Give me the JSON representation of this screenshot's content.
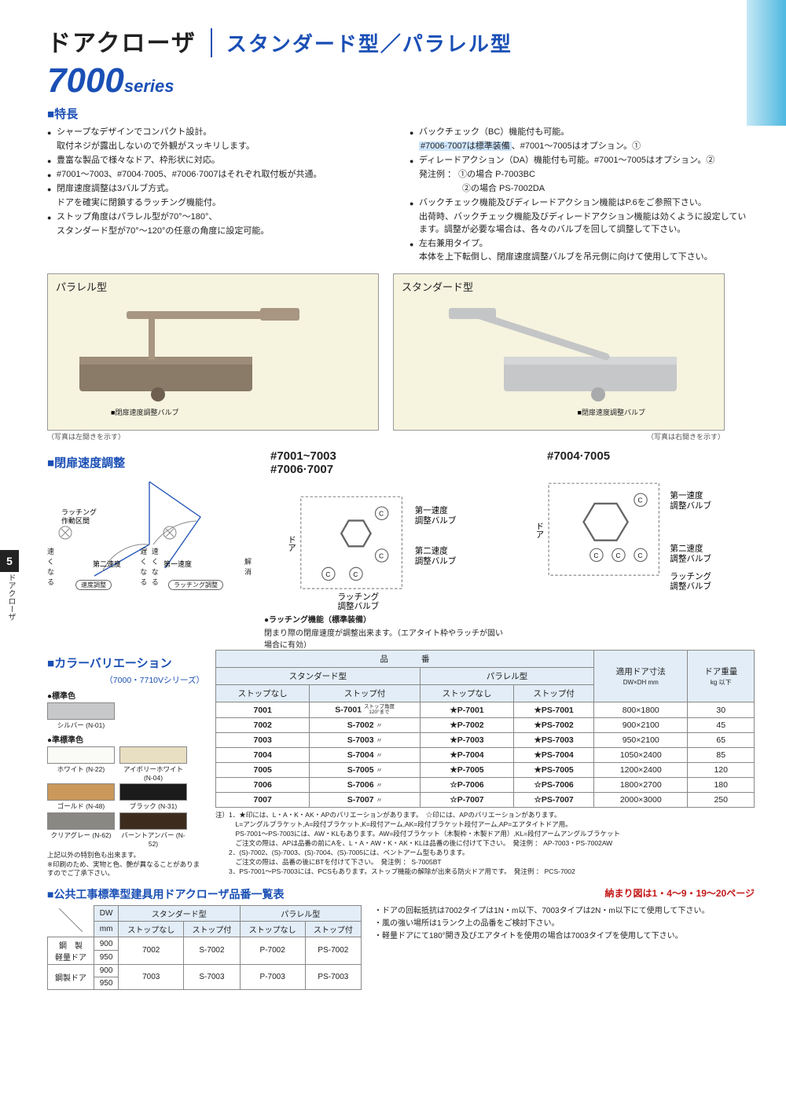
{
  "page_number": "5",
  "side_label": "ドアクローザ",
  "header": {
    "title": "ドアクローザ",
    "subtitle": "スタンダード型／パラレル型"
  },
  "series": {
    "num": "7000",
    "suffix": "series"
  },
  "feature_heading": "特長",
  "features_left": [
    {
      "t": "シャープなデザインでコンパクト設計。",
      "b": true
    },
    {
      "t": "取付ネジが露出しないので外観がスッキリします。",
      "b": false
    },
    {
      "t": "豊富な製品で様々なドア、枠形状に対応。",
      "b": true
    },
    {
      "t": "#7001〜7003、#7004·7005、#7006·7007はそれぞれ取付板が共通。",
      "b": true
    },
    {
      "t": "閉扉速度調整は3バルブ方式。",
      "b": true
    },
    {
      "t": "ドアを確実に閉鎖するラッチング機能付。",
      "b": false
    },
    {
      "t": "ストップ角度はパラレル型が70°〜180°、",
      "b": true
    },
    {
      "t": "スタンダード型が70°〜120°の任意の角度に設定可能。",
      "b": false
    }
  ],
  "features_right": [
    {
      "t": "バックチェック（BC）機能付も可能。",
      "b": true
    },
    {
      "t": "#7006·7007は標準装備、#7001〜7005はオプション。①",
      "b": false,
      "hl": "#7006·7007は標準装備"
    },
    {
      "t": "ディレードアクション（DA）機能付も可能。#7001〜7005はオプション。②",
      "b": true
    },
    {
      "t": "発注例 ： ①の場合 P-7003BC",
      "b": false
    },
    {
      "t": "　　　　　②の場合 PS-7002DA",
      "b": false
    },
    {
      "t": "バックチェック機能及びディレードアクション機能はP.6をご参照下さい。",
      "b": true
    },
    {
      "t": "出荷時、バックチェック機能及びディレードアクション機能は効くように設定しています。調整が必要な場合は、各々のバルブを回して調整して下さい。",
      "b": false
    },
    {
      "t": "左右兼用タイプ。",
      "b": true
    },
    {
      "t": "本体を上下転倒し、閉扉速度調整バルブを吊元側に向けて使用して下さい。",
      "b": false
    }
  ],
  "images": {
    "left_label": "パラレル型",
    "right_label": "スタンダード型",
    "valve_label": "閉扉速度調整バルブ",
    "left_caption": "（写真は左開きを示す）",
    "right_caption": "（写真は右開きを示す）"
  },
  "adj_heading": "閉扉速度調整",
  "adj_labels": {
    "latching_zone": "ラッチング\n作動区間",
    "speed2": "第二速度",
    "speed1": "第一速度",
    "speed_adj": "速度調整",
    "latch_adj": "ラッチング調整",
    "faster": "速くなる",
    "slower": "遅くなる",
    "release": "解消"
  },
  "diag1_title": "#7001~7003\n#7006·7007",
  "diag2_title": "#7004·7005",
  "valve_labels": {
    "v1": "第一速度\n調整バルブ",
    "v2": "第二速度\n調整バルブ",
    "v3": "ラッチング\n調整バルブ",
    "door": "ドア"
  },
  "latch_note_h": "●ラッチング機能（標準装備）",
  "latch_note_b": "閉まり際の閉扉速度が調整出来ます。（エアタイト枠やラッチが固い場合に有効）",
  "color_heading": "カラーバリエーション",
  "color_sub": "（7000・7710Vシリーズ）",
  "color_groups": [
    {
      "h": "●標準色",
      "rows": [
        [
          {
            "c": "#c7c8c9",
            "n": "シルバー (N-01)"
          }
        ]
      ]
    },
    {
      "h": "●準標準色",
      "rows": [
        [
          {
            "c": "#fafaf6",
            "n": "ホワイト (N-22)"
          },
          {
            "c": "#e8dec2",
            "n": "アイボリーホワイト (N-04)"
          }
        ],
        [
          {
            "c": "#c9985a",
            "n": "ゴールド (N-48)"
          },
          {
            "c": "#1b1b1b",
            "n": "ブラック (N-31)"
          }
        ],
        [
          {
            "c": "#8a8882",
            "n": "クリアグレー (N-62)"
          },
          {
            "c": "#3d2c1e",
            "n": "バーントアンバー (N-52)"
          }
        ]
      ]
    }
  ],
  "color_note": "上記以外の特別色も出来ます。\n※印刷のため、実物と色、艶が異なることがありますのでご了承下さい。",
  "table": {
    "head1": "品　　　　番",
    "cols": [
      "スタンダード型",
      "パラレル型"
    ],
    "sub": [
      "ストップなし",
      "ストップ付",
      "ストップなし",
      "ストップ付"
    ],
    "size_h": "適用ドア寸法",
    "size_h2": "DW×DH mm",
    "wt_h": "ドア重量",
    "wt_h2": "kg 以下",
    "stop_note": "ストップ角度\n120°まで",
    "rows": [
      [
        "7001",
        "S-7001",
        "★P-7001",
        "★PS-7001",
        "800×1800",
        "30"
      ],
      [
        "7002",
        "S-7002",
        "★P-7002",
        "★PS-7002",
        "900×2100",
        "45"
      ],
      [
        "7003",
        "S-7003",
        "★P-7003",
        "★PS-7003",
        "950×2100",
        "65"
      ],
      [
        "7004",
        "S-7004",
        "★P-7004",
        "★PS-7004",
        "1050×2400",
        "85"
      ],
      [
        "7005",
        "S-7005",
        "★P-7005",
        "★PS-7005",
        "1200×2400",
        "120"
      ],
      [
        "7006",
        "S-7006",
        "☆P-7006",
        "☆PS-7006",
        "1800×2700",
        "180"
      ],
      [
        "7007",
        "S-7007",
        "☆P-7007",
        "☆PS-7007",
        "2000×3000",
        "250"
      ]
    ]
  },
  "footnotes": [
    "注）1．★印には、L・A・K・AK・APのバリエーションがあります。　☆印には、APのバリエーションがあります。",
    "　　　L=アングルブラケット,A=段付ブラケット,K=段付アーム,AK=段付ブラケット段付アーム,AP=エアタイトドア用。",
    "　　　PS-7001〜PS-7003には、AW・KLもあります。AW=段付ブラケット（木製枠・木製ドア用）,KL=段付アームアングルブラケット",
    "　　　ご注文の際は、APは品番の前にAを、L・A・AW・K・AK・KLは品番の後に付けて下さい。　発注例 ： AP-7003・PS-7002AW",
    "　　2．(S)-7002、(S)-7003、(S)-7004、(S)-7005には、ベントアーム型もあります。",
    "　　　ご注文の際は、品番の後にBTを付けて下さい。　発注例 ： S-7005BT",
    "　　3．PS-7001〜PS-7003には、PCSもあります。ストップ機能の解除が出来る防火ドア用です。　発注例 ： PCS-7002"
  ],
  "pub_heading": "公共工事標準型建具用ドアクローザ品番一覧表",
  "pub_right": "納まり図は1・4〜9・19〜20ページ",
  "pub_table": {
    "dw": "DW",
    "mm": "mm",
    "cols": [
      "スタンダード型",
      "パラレル型"
    ],
    "sub": [
      "ストップなし",
      "ストップ付",
      "ストップなし",
      "ストップ付"
    ],
    "rowh": [
      "鋼　製\n軽量ドア",
      "鋼製ドア"
    ],
    "rows": [
      [
        "900",
        "7002",
        "S-7002",
        "P-7002",
        "PS-7002"
      ],
      [
        "950",
        "",
        "",
        "",
        ""
      ],
      [
        "900",
        "7003",
        "S-7003",
        "P-7003",
        "PS-7003"
      ],
      [
        "950",
        "",
        "",
        "",
        ""
      ]
    ]
  },
  "pub_notes": [
    "ドアの回転抵抗は7002タイプは1N・m以下、7003タイプは2N・m以下にて使用して下さい。",
    "風の強い場所は1ランク上の品番をご検討下さい。",
    "軽量ドアにて180°開き及びエアタイトを使用の場合は7003タイプを使用して下さい。"
  ]
}
